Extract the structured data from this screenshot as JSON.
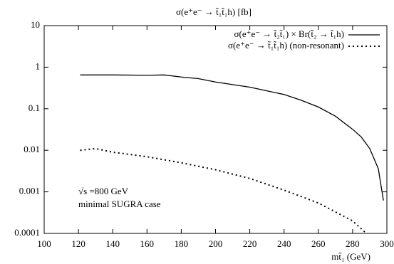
{
  "chart_data": {
    "type": "line",
    "title": "σ(e⁺e⁻ → t̃₁t̃₁h)  [fb]",
    "x_label": "mt̃₁  (GeV)",
    "annotations": [
      "√s =800 GeV",
      "minimal SUGRA case"
    ],
    "xlim": [
      100,
      300
    ],
    "xticks": [
      100,
      120,
      140,
      160,
      180,
      200,
      220,
      240,
      260,
      280,
      300
    ],
    "ylim": [
      0.0001,
      10
    ],
    "yticks": [
      10,
      1,
      0.1,
      0.01,
      0.001,
      0.0001
    ],
    "log_y": true,
    "legend": "top-right",
    "series": [
      {
        "name": "σ(e⁺e⁻ → t̃₂t̃₁) × Br(t̃₂ → t̃₁h)",
        "color": "#000000",
        "style": "solid",
        "x": [
          121,
          140,
          160,
          170,
          180,
          190,
          200,
          220,
          240,
          250,
          260,
          270,
          280,
          285,
          290,
          295,
          298
        ],
        "values": [
          0.65,
          0.65,
          0.64,
          0.65,
          0.58,
          0.53,
          0.44,
          0.33,
          0.22,
          0.16,
          0.11,
          0.066,
          0.032,
          0.021,
          0.011,
          0.0036,
          0.00062
        ]
      },
      {
        "name": "σ(e⁺e⁻ → t̃₁t̃₁h) (non-resonant)",
        "color": "#000000",
        "style": "dotted",
        "x": [
          121,
          130,
          140,
          160,
          180,
          200,
          220,
          240,
          260,
          280,
          288
        ],
        "values": [
          0.01,
          0.011,
          0.009,
          0.007,
          0.005,
          0.0034,
          0.0021,
          0.0011,
          0.00054,
          0.0002,
          0.0001
        ]
      }
    ]
  }
}
